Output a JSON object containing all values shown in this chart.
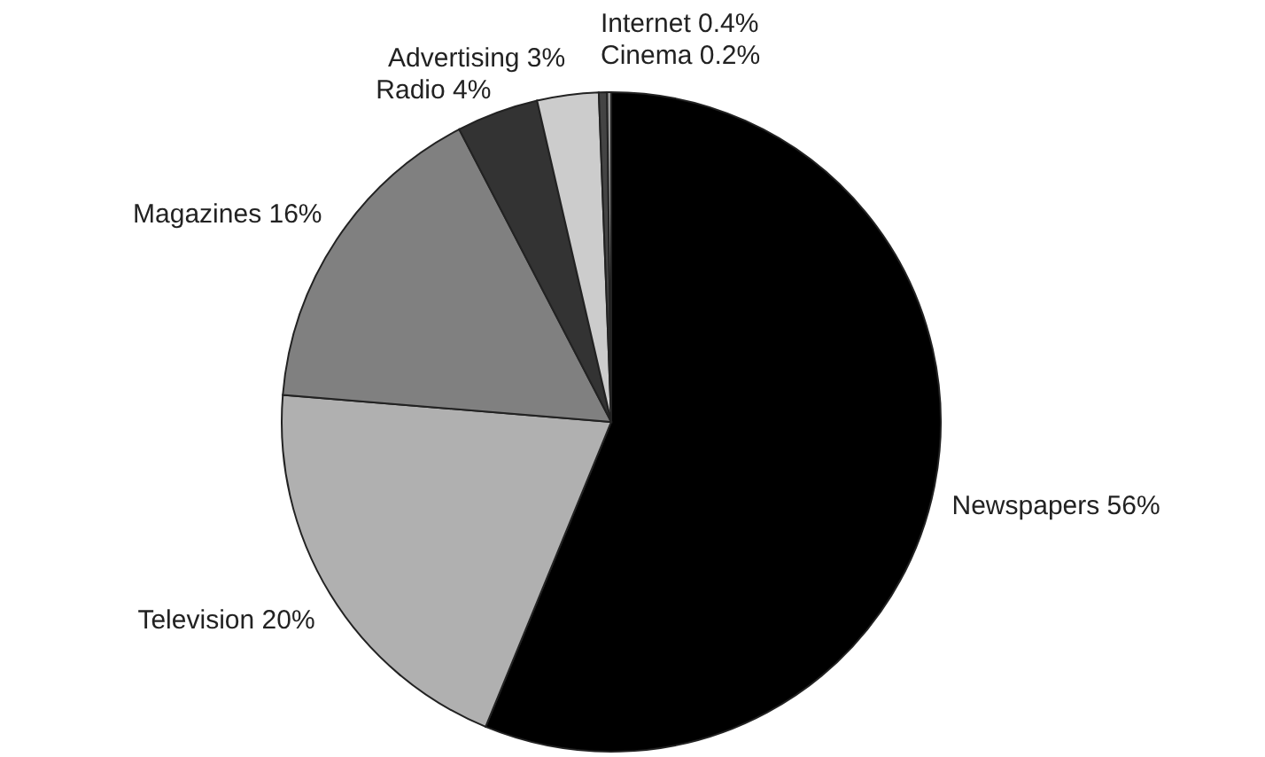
{
  "chart_data": {
    "type": "pie",
    "categories": [
      "Newspapers",
      "Television",
      "Magazines",
      "Radio",
      "Advertising",
      "Internet",
      "Cinema"
    ],
    "values": [
      56,
      20,
      16,
      4,
      3,
      0.4,
      0.2
    ],
    "colors": [
      "#000000",
      "#b0b0b0",
      "#808080",
      "#333333",
      "#cccccc",
      "#444444",
      "#999999"
    ],
    "value_labels": [
      "56%",
      "20%",
      "16%",
      "4%",
      "3%",
      "0.4%",
      "0.2%"
    ]
  }
}
